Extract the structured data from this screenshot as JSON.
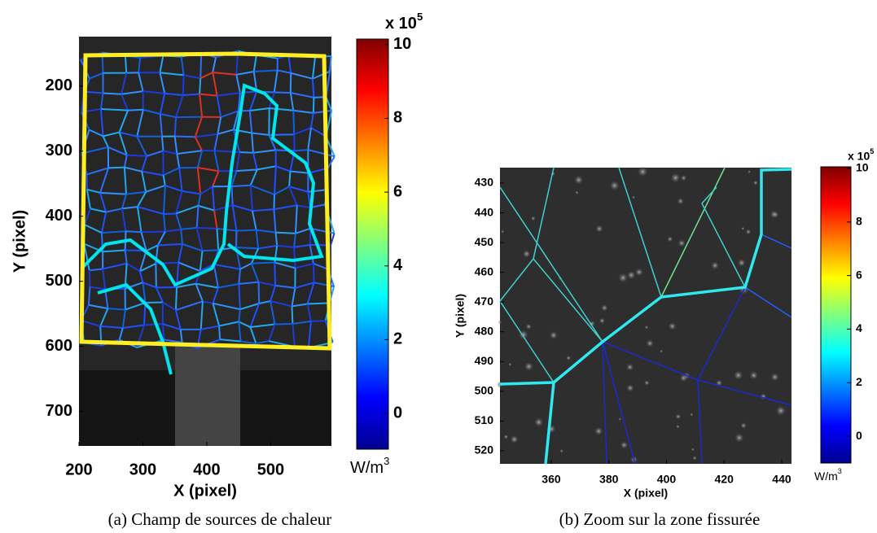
{
  "chart_data": [
    {
      "type": "image",
      "xlabel": "X (pixel)",
      "ylabel": "Y (pixel)",
      "xlim": [
        200,
        595
      ],
      "ylim": [
        753,
        124
      ],
      "xticks": [
        200,
        300,
        400,
        500
      ],
      "yticks": [
        200,
        300,
        400,
        500,
        600,
        700
      ],
      "colorbar": {
        "lim": [
          -0.97,
          10.15
        ],
        "ticks": [
          0,
          2,
          4,
          6,
          8,
          10
        ],
        "multiplier": "x 10",
        "exponent": "5",
        "unit": "W/m",
        "unit_exponent": "3"
      },
      "caption": "(a) Champ de sources de chaleur"
    },
    {
      "type": "image",
      "xlabel": "X (pixel)",
      "ylabel": "Y (pixel)",
      "xlim": [
        342.2,
        443.4
      ],
      "ylim": [
        524.4,
        424.8
      ],
      "xticks": [
        360,
        380,
        400,
        420,
        440
      ],
      "yticks": [
        430,
        440,
        450,
        460,
        470,
        480,
        490,
        500,
        510,
        520
      ],
      "colorbar": {
        "lim": [
          -1.0,
          10.06
        ],
        "ticks": [
          0,
          2,
          4,
          6,
          8,
          10
        ],
        "multiplier": "x 10",
        "exponent": "5",
        "unit": "W/m",
        "unit_exponent": "3"
      },
      "caption": "(b) Zoom sur la zone fissurée"
    }
  ]
}
